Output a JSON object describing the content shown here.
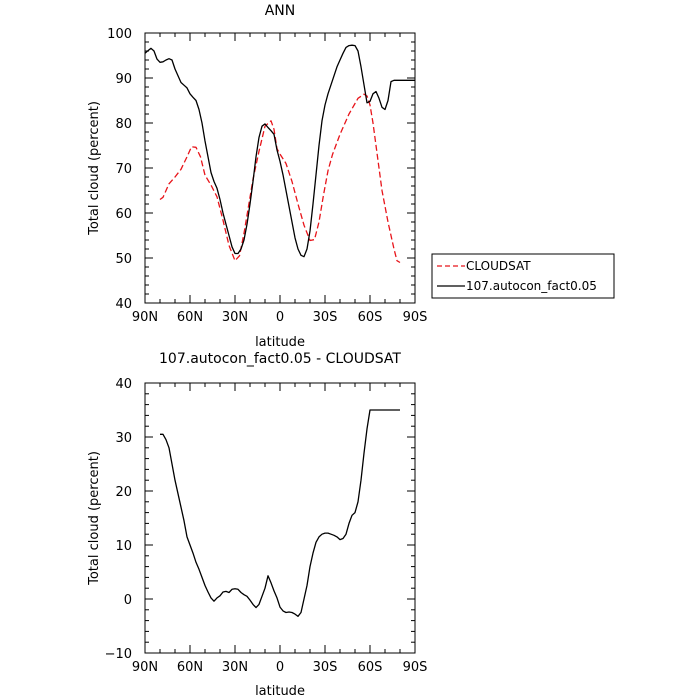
{
  "chart_data": [
    {
      "type": "line",
      "title": "ANN",
      "xlabel": "latitude",
      "ylabel": "Total cloud (percent)",
      "xlim": [
        90,
        -90
      ],
      "ylim": [
        40,
        100
      ],
      "x_ticks": [
        {
          "value": 90,
          "label": "90N"
        },
        {
          "value": 60,
          "label": "60N"
        },
        {
          "value": 30,
          "label": "30N"
        },
        {
          "value": 0,
          "label": "0"
        },
        {
          "value": -30,
          "label": "30S"
        },
        {
          "value": -60,
          "label": "60S"
        },
        {
          "value": -90,
          "label": "90S"
        }
      ],
      "y_ticks": [
        40,
        50,
        60,
        70,
        80,
        90,
        100
      ],
      "legend": {
        "placement": "right",
        "entries": [
          "CLOUDSAT",
          "107.autocon_fact0.05"
        ]
      },
      "series": [
        {
          "name": "CLOUDSAT",
          "color": "#e8141a",
          "dash": "dashed",
          "x": [
            80,
            78,
            74,
            70,
            66,
            62,
            59,
            56,
            53,
            50,
            46,
            42,
            38,
            34,
            30,
            27,
            24,
            21,
            18,
            14,
            10,
            6,
            4,
            2,
            0,
            -4,
            -8,
            -12,
            -16,
            -20,
            -23,
            -26,
            -29,
            -32,
            -35,
            -40,
            -46,
            -52,
            -56,
            -58,
            -60,
            -62,
            -64,
            -66,
            -68,
            -70,
            -72,
            -74,
            -76,
            -78,
            -80
          ],
          "values": [
            63,
            63.5,
            66.5,
            68.0,
            69.7,
            72.5,
            74.7,
            74.6,
            72.5,
            68.4,
            66.2,
            63.6,
            58.4,
            52.8,
            49.4,
            50.5,
            55.5,
            61.5,
            67.5,
            73.7,
            79.3,
            80.5,
            78.6,
            74.3,
            73.1,
            71.0,
            67.0,
            62.0,
            57.3,
            53.9,
            54.1,
            58.0,
            64.0,
            69.4,
            73.0,
            77.5,
            82.0,
            85.5,
            86.4,
            86.0,
            84.0,
            80.0,
            75.0,
            70.0,
            65.0,
            61.5,
            58.0,
            55.0,
            52.0,
            49.4,
            49.0
          ]
        },
        {
          "name": "107.autocon_fact0.05",
          "color": "#000000",
          "dash": "solid",
          "x": [
            90,
            88,
            86,
            84,
            82,
            80,
            78,
            76,
            74,
            72,
            70,
            68,
            66,
            64,
            62,
            60,
            58,
            56,
            54,
            52,
            50,
            48,
            46,
            44,
            42,
            40,
            38,
            36,
            34,
            32,
            30,
            28,
            26,
            24,
            22,
            20,
            18,
            16,
            14,
            12,
            10,
            8,
            6,
            4,
            2,
            0,
            -2,
            -4,
            -6,
            -8,
            -10,
            -12,
            -14,
            -16,
            -18,
            -20,
            -22,
            -24,
            -26,
            -28,
            -30,
            -32,
            -34,
            -36,
            -38,
            -40,
            -42,
            -44,
            -46,
            -48,
            -50,
            -52,
            -54,
            -56,
            -58,
            -60,
            -62,
            -64,
            -66,
            -68,
            -70,
            -72,
            -74,
            -76,
            -78,
            -80,
            -82,
            -84,
            -86,
            -88,
            -90
          ],
          "values": [
            95.5,
            96.1,
            96.6,
            96.0,
            94.2,
            93.5,
            93.6,
            94.0,
            94.3,
            94.0,
            92.0,
            90.5,
            89.0,
            88.4,
            87.8,
            86.5,
            85.7,
            85.0,
            83.0,
            80.0,
            76.0,
            72.5,
            69.0,
            67.0,
            65.5,
            63.0,
            60.0,
            57.5,
            55.0,
            52.5,
            51.0,
            51.0,
            52.0,
            54.0,
            57.5,
            62.0,
            67.0,
            72.5,
            76.8,
            79.3,
            79.8,
            79.0,
            78.3,
            77.5,
            74.0,
            71.5,
            68.5,
            65.0,
            61.5,
            58.0,
            54.5,
            52.0,
            50.6,
            50.3,
            52.0,
            56.0,
            62.0,
            68.5,
            75.0,
            80.5,
            84.0,
            86.5,
            88.5,
            90.5,
            92.5,
            94.0,
            95.5,
            96.8,
            97.2,
            97.3,
            97.2,
            96.0,
            92.5,
            88.5,
            84.5,
            84.8,
            86.5,
            87.0,
            85.5,
            83.5,
            83.0,
            85.0,
            89.2,
            89.5,
            89.5,
            89.5,
            89.5,
            89.5,
            89.5,
            89.5,
            89.5
          ]
        }
      ]
    },
    {
      "type": "line",
      "title": "107.autocon_fact0.05 - CLOUDSAT",
      "xlabel": "latitude",
      "ylabel": "Total cloud (percent)",
      "xlim": [
        90,
        -90
      ],
      "ylim": [
        -10,
        40
      ],
      "x_ticks": [
        {
          "value": 90,
          "label": "90N"
        },
        {
          "value": 60,
          "label": "60N"
        },
        {
          "value": 30,
          "label": "30N"
        },
        {
          "value": 0,
          "label": "0"
        },
        {
          "value": -30,
          "label": "30S"
        },
        {
          "value": -60,
          "label": "60S"
        },
        {
          "value": -90,
          "label": "90S"
        }
      ],
      "y_ticks": [
        -10,
        0,
        10,
        20,
        30,
        40
      ],
      "series": [
        {
          "color": "#000000",
          "dash": "solid",
          "x": [
            80,
            78,
            76,
            74,
            72,
            70,
            68,
            66,
            64,
            62,
            60,
            58,
            56,
            54,
            52,
            50,
            48,
            46,
            44,
            42,
            40,
            38,
            36,
            34,
            32,
            30,
            28,
            26,
            24,
            22,
            20,
            18,
            16,
            14,
            12,
            10,
            8,
            6,
            4,
            2,
            0,
            -2,
            -4,
            -6,
            -8,
            -10,
            -12,
            -14,
            -16,
            -18,
            -20,
            -22,
            -24,
            -26,
            -28,
            -30,
            -32,
            -34,
            -36,
            -38,
            -40,
            -42,
            -44,
            -46,
            -48,
            -50,
            -52,
            -54,
            -56,
            -58,
            -60,
            -62,
            -64,
            -66,
            -68,
            -70,
            -72,
            -74,
            -76,
            -78,
            -80
          ],
          "values": [
            30.5,
            30.5,
            29.5,
            28.0,
            25.0,
            22.0,
            19.5,
            17.0,
            14.5,
            11.5,
            10.0,
            8.5,
            6.8,
            5.5,
            4.0,
            2.5,
            1.3,
            0.2,
            -0.4,
            0.2,
            0.6,
            1.3,
            1.4,
            1.2,
            1.8,
            1.9,
            1.8,
            1.2,
            0.8,
            0.5,
            -0.2,
            -1.0,
            -1.6,
            -1.0,
            0.5,
            2.0,
            4.3,
            3.0,
            1.5,
            0.2,
            -1.5,
            -2.2,
            -2.5,
            -2.4,
            -2.5,
            -2.8,
            -3.2,
            -2.5,
            0.0,
            2.5,
            6.0,
            8.5,
            10.5,
            11.5,
            12.0,
            12.2,
            12.2,
            12.0,
            11.8,
            11.5,
            11.0,
            11.2,
            12.0,
            14.0,
            15.5,
            16.0,
            18.0,
            22.0,
            27.0,
            31.5,
            35.0,
            35.0,
            35.0,
            35.0,
            35.0,
            35.0,
            35.0,
            35.0,
            35.0,
            35.0,
            35.0
          ]
        }
      ]
    }
  ]
}
